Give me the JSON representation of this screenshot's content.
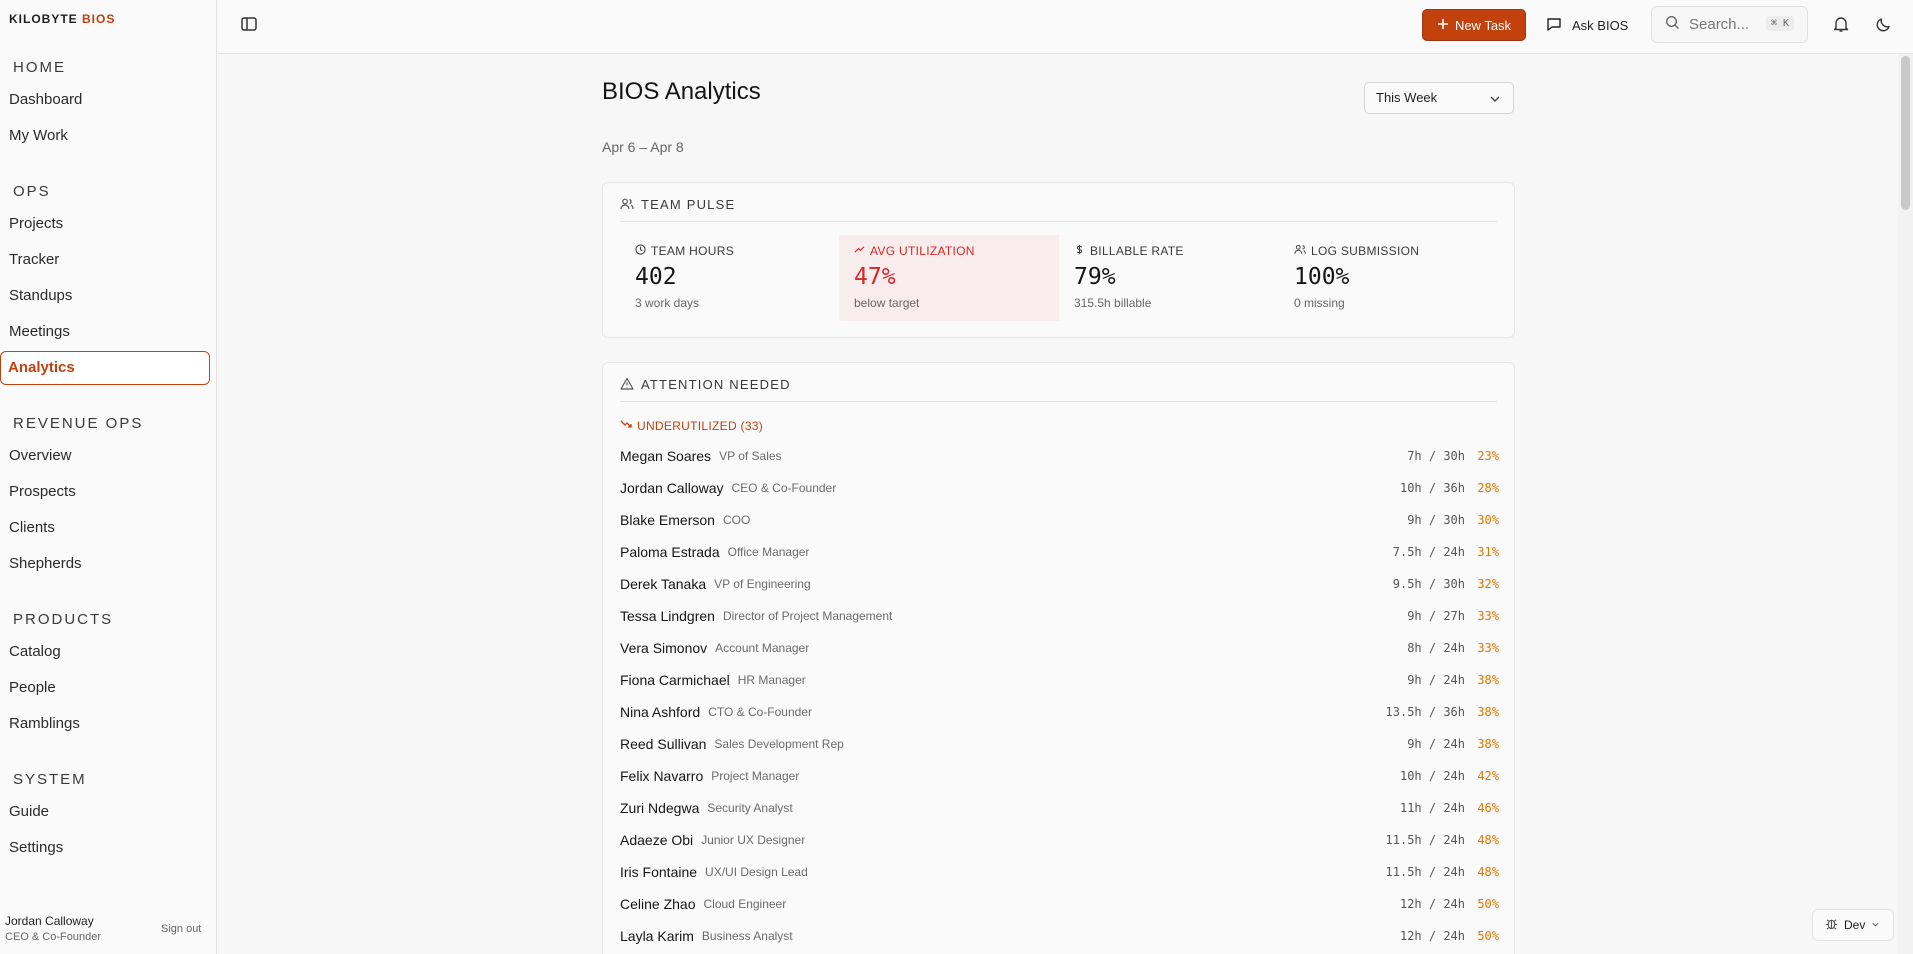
{
  "brand": {
    "primary": "KILOBYTE",
    "accent": "BIOS",
    "accent_color": "#c2410c"
  },
  "sidebar": {
    "sections": [
      {
        "title": "HOME",
        "items": [
          "Dashboard",
          "My Work"
        ]
      },
      {
        "title": "OPS",
        "items": [
          "Projects",
          "Tracker",
          "Standups",
          "Meetings",
          "Analytics"
        ]
      },
      {
        "title": "REVENUE OPS",
        "items": [
          "Overview",
          "Prospects",
          "Clients",
          "Shepherds"
        ]
      },
      {
        "title": "PRODUCTS",
        "items": [
          "Catalog",
          "People",
          "Ramblings"
        ]
      },
      {
        "title": "SYSTEM",
        "items": [
          "Guide",
          "Settings"
        ]
      }
    ],
    "active_item": "Analytics",
    "user": {
      "name": "Jordan Calloway",
      "role": "CEO & Co-Founder"
    },
    "sign_out": "Sign out"
  },
  "topbar": {
    "new_task": "New Task",
    "ask": "Ask BIOS",
    "search_placeholder": "Search...",
    "search_shortcut": "⌘ K",
    "icons": [
      "sidebar-toggle-icon",
      "plus-icon",
      "chat-icon",
      "search-icon",
      "bell-icon",
      "moon-icon"
    ]
  },
  "main": {
    "title": "BIOS Analytics",
    "range": "This Week",
    "date_range": "Apr 6 – Apr 8"
  },
  "team_pulse": {
    "title": "TEAM PULSE",
    "metrics": [
      {
        "label": "TEAM HOURS",
        "value": "402",
        "sub": "3 work days"
      },
      {
        "label": "AVG UTILIZATION",
        "value": "47%",
        "sub": "below target",
        "warn": true
      },
      {
        "label": "BILLABLE RATE",
        "value": "79%",
        "sub": "315.5h billable"
      },
      {
        "label": "LOG SUBMISSION",
        "value": "100%",
        "sub": "0 missing"
      }
    ]
  },
  "attention": {
    "title": "ATTENTION NEEDED",
    "underutilized_label": "UNDERUTILIZED (33)",
    "people": [
      {
        "name": "Megan Soares",
        "role": "VP of Sales",
        "hours": "7h / 30h",
        "pct": "23%"
      },
      {
        "name": "Jordan Calloway",
        "role": "CEO & Co-Founder",
        "hours": "10h / 36h",
        "pct": "28%"
      },
      {
        "name": "Blake Emerson",
        "role": "COO",
        "hours": "9h / 30h",
        "pct": "30%"
      },
      {
        "name": "Paloma Estrada",
        "role": "Office Manager",
        "hours": "7.5h / 24h",
        "pct": "31%"
      },
      {
        "name": "Derek Tanaka",
        "role": "VP of Engineering",
        "hours": "9.5h / 30h",
        "pct": "32%"
      },
      {
        "name": "Tessa Lindgren",
        "role": "Director of Project Management",
        "hours": "9h / 27h",
        "pct": "33%"
      },
      {
        "name": "Vera Simonov",
        "role": "Account Manager",
        "hours": "8h / 24h",
        "pct": "33%"
      },
      {
        "name": "Fiona Carmichael",
        "role": "HR Manager",
        "hours": "9h / 24h",
        "pct": "38%"
      },
      {
        "name": "Nina Ashford",
        "role": "CTO & Co-Founder",
        "hours": "13.5h / 36h",
        "pct": "38%"
      },
      {
        "name": "Reed Sullivan",
        "role": "Sales Development Rep",
        "hours": "9h / 24h",
        "pct": "38%"
      },
      {
        "name": "Felix Navarro",
        "role": "Project Manager",
        "hours": "10h / 24h",
        "pct": "42%"
      },
      {
        "name": "Zuri Ndegwa",
        "role": "Security Analyst",
        "hours": "11h / 24h",
        "pct": "46%"
      },
      {
        "name": "Adaeze Obi",
        "role": "Junior UX Designer",
        "hours": "11.5h / 24h",
        "pct": "48%"
      },
      {
        "name": "Iris Fontaine",
        "role": "UX/UI Design Lead",
        "hours": "11.5h / 24h",
        "pct": "48%"
      },
      {
        "name": "Celine Zhao",
        "role": "Cloud Engineer",
        "hours": "12h / 24h",
        "pct": "50%"
      },
      {
        "name": "Layla Karim",
        "role": "Business Analyst",
        "hours": "12h / 24h",
        "pct": "50%"
      }
    ]
  },
  "dev_badge": "Dev",
  "colors": {
    "accent": "#c2410c",
    "warn_red": "#dc2626",
    "pct_amber": "#d97706"
  }
}
